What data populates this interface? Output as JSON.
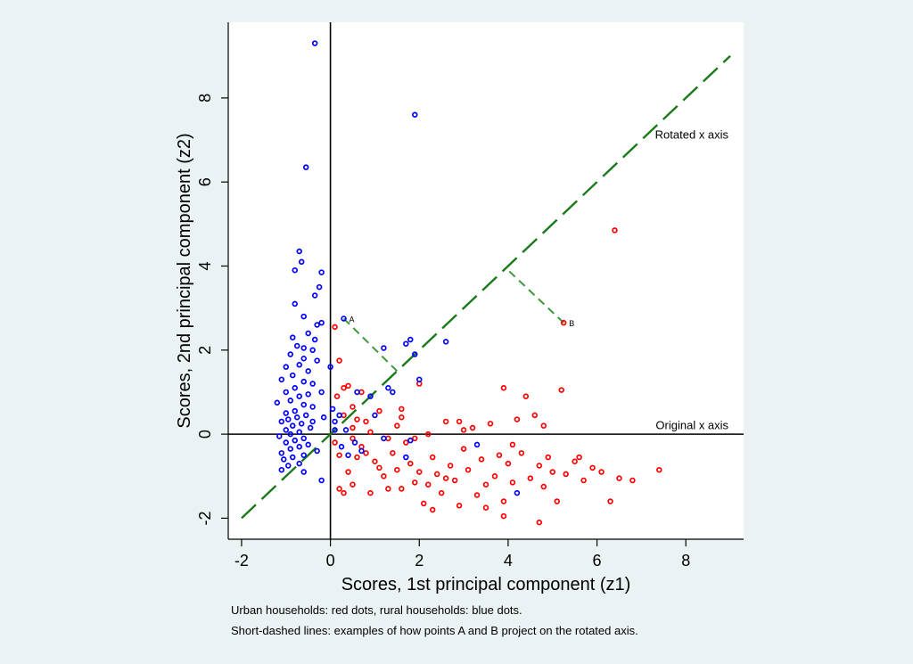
{
  "chart_data": {
    "type": "scatter",
    "xlabel": "Scores, 1st principal component (z1)",
    "ylabel": "Scores, 2nd principal component (z2)",
    "xlim": [
      -2.3,
      9.3
    ],
    "ylim": [
      -2.5,
      9.8
    ],
    "xticks": [
      -2,
      0,
      2,
      4,
      6,
      8
    ],
    "yticks": [
      -2,
      0,
      2,
      4,
      6,
      8
    ],
    "grid": false,
    "annotations": [
      {
        "text": "Rotated x axis",
        "x": 9.0,
        "y": 6.95
      },
      {
        "text": "Original x axis",
        "x": 9.0,
        "y": 0.03
      }
    ],
    "reference_lines": {
      "rotated_axis": {
        "from": [
          -2,
          -2
        ],
        "to": [
          9,
          9
        ]
      },
      "original_axis_y": 0,
      "original_axis_x": 0
    },
    "labeled_points": [
      {
        "label": "A",
        "x": 0.3,
        "y": 2.75,
        "proj_x": 1.5,
        "proj_y": 1.5
      },
      {
        "label": "B",
        "x": 5.25,
        "y": 2.65,
        "proj_x": 3.95,
        "proj_y": 3.95
      }
    ],
    "colors": {
      "urban": "#ff0000",
      "rural": "#0000ff",
      "rotated_axis": "#1a7a1a",
      "projection": "#3c9a3c"
    },
    "series": [
      {
        "color": "#ff0000",
        "points": [
          [
            0.1,
            2.55
          ],
          [
            0.2,
            1.75
          ],
          [
            0.3,
            1.1
          ],
          [
            0.4,
            1.15
          ],
          [
            0.5,
            0.65
          ],
          [
            0.6,
            0.35
          ],
          [
            0.3,
            0.45
          ],
          [
            0.5,
            -0.1
          ],
          [
            0.2,
            -0.5
          ],
          [
            0.4,
            -0.9
          ],
          [
            0.2,
            -1.3
          ],
          [
            0.3,
            -1.4
          ],
          [
            0.5,
            -1.2
          ],
          [
            0.6,
            -0.55
          ],
          [
            0.7,
            -0.3
          ],
          [
            0.8,
            0.3
          ],
          [
            0.9,
            0.05
          ],
          [
            1.0,
            -0.65
          ],
          [
            1.1,
            -0.8
          ],
          [
            1.2,
            -1.0
          ],
          [
            1.3,
            -1.3
          ],
          [
            1.4,
            -0.45
          ],
          [
            1.5,
            -0.85
          ],
          [
            1.6,
            0.6
          ],
          [
            1.7,
            -0.2
          ],
          [
            1.8,
            -0.7
          ],
          [
            1.9,
            -1.15
          ],
          [
            2.0,
            -0.9
          ],
          [
            2.1,
            -1.65
          ],
          [
            2.2,
            -1.2
          ],
          [
            2.3,
            -0.55
          ],
          [
            2.4,
            -0.95
          ],
          [
            2.5,
            -1.4
          ],
          [
            2.6,
            0.3
          ],
          [
            2.7,
            -0.75
          ],
          [
            2.8,
            -1.1
          ],
          [
            2.9,
            -1.7
          ],
          [
            3.0,
            -0.35
          ],
          [
            3.1,
            -0.85
          ],
          [
            3.2,
            0.15
          ],
          [
            3.3,
            -1.45
          ],
          [
            3.4,
            -0.6
          ],
          [
            3.5,
            -1.2
          ],
          [
            3.6,
            0.25
          ],
          [
            3.7,
            -1.0
          ],
          [
            3.8,
            -0.5
          ],
          [
            3.9,
            -1.6
          ],
          [
            4.0,
            -0.7
          ],
          [
            4.1,
            -1.15
          ],
          [
            4.2,
            0.35
          ],
          [
            4.3,
            -0.45
          ],
          [
            4.4,
            0.9
          ],
          [
            4.5,
            -1.05
          ],
          [
            4.6,
            0.45
          ],
          [
            4.7,
            -0.75
          ],
          [
            4.8,
            -1.25
          ],
          [
            4.9,
            -0.55
          ],
          [
            5.0,
            -0.9
          ],
          [
            5.1,
            -1.6
          ],
          [
            5.2,
            1.05
          ],
          [
            5.3,
            -0.95
          ],
          [
            5.5,
            -0.65
          ],
          [
            5.7,
            -1.1
          ],
          [
            5.9,
            -0.8
          ],
          [
            6.1,
            -0.9
          ],
          [
            6.3,
            -1.6
          ],
          [
            6.5,
            -1.05
          ],
          [
            6.8,
            -1.1
          ],
          [
            7.4,
            -0.85
          ],
          [
            6.4,
            4.85
          ],
          [
            5.25,
            2.65
          ],
          [
            3.9,
            1.1
          ],
          [
            2.0,
            1.2
          ],
          [
            1.6,
            0.4
          ],
          [
            1.1,
            0.55
          ],
          [
            0.15,
            0.9
          ],
          [
            0.1,
            -0.2
          ],
          [
            0.9,
            -1.4
          ],
          [
            1.9,
            -0.1
          ],
          [
            2.3,
            -1.8
          ],
          [
            3.5,
            -1.75
          ],
          [
            4.7,
            -2.1
          ],
          [
            3.9,
            -1.95
          ],
          [
            0.7,
            1.0
          ],
          [
            0.8,
            -0.45
          ],
          [
            1.6,
            -1.3
          ],
          [
            2.6,
            -1.05
          ],
          [
            4.1,
            -0.25
          ],
          [
            5.6,
            -0.55
          ],
          [
            0.5,
            0.15
          ],
          [
            1.3,
            -0.1
          ],
          [
            2.2,
            0.0
          ],
          [
            3.0,
            0.1
          ],
          [
            4.8,
            0.2
          ],
          [
            1.5,
            0.2
          ],
          [
            2.9,
            0.3
          ]
        ]
      },
      {
        "color": "#0000ff",
        "points": [
          [
            -0.35,
            9.3
          ],
          [
            -0.55,
            6.35
          ],
          [
            -0.7,
            4.35
          ],
          [
            -0.65,
            4.1
          ],
          [
            -0.8,
            3.9
          ],
          [
            -0.2,
            3.85
          ],
          [
            -0.25,
            3.5
          ],
          [
            -0.35,
            3.3
          ],
          [
            -0.8,
            3.1
          ],
          [
            -0.6,
            2.8
          ],
          [
            -0.3,
            2.6
          ],
          [
            -0.5,
            2.4
          ],
          [
            -0.85,
            2.3
          ],
          [
            -0.75,
            2.1
          ],
          [
            -0.4,
            2.0
          ],
          [
            -0.9,
            1.9
          ],
          [
            -0.6,
            1.8
          ],
          [
            -0.3,
            1.75
          ],
          [
            -0.7,
            1.65
          ],
          [
            -1.0,
            1.6
          ],
          [
            -0.5,
            1.5
          ],
          [
            -0.85,
            1.4
          ],
          [
            -1.1,
            1.3
          ],
          [
            -0.6,
            1.25
          ],
          [
            -0.4,
            1.2
          ],
          [
            -0.8,
            1.1
          ],
          [
            -1.0,
            1.0
          ],
          [
            -0.5,
            0.95
          ],
          [
            -0.7,
            0.9
          ],
          [
            -0.9,
            0.8
          ],
          [
            -1.2,
            0.75
          ],
          [
            -0.6,
            0.7
          ],
          [
            -0.4,
            0.65
          ],
          [
            -0.8,
            0.55
          ],
          [
            -1.0,
            0.5
          ],
          [
            -0.55,
            0.45
          ],
          [
            -0.75,
            0.4
          ],
          [
            -0.95,
            0.35
          ],
          [
            -1.1,
            0.3
          ],
          [
            -0.65,
            0.25
          ],
          [
            -0.85,
            0.2
          ],
          [
            -0.45,
            0.15
          ],
          [
            -1.0,
            0.1
          ],
          [
            -0.7,
            0.05
          ],
          [
            -0.9,
            0.0
          ],
          [
            -1.15,
            -0.05
          ],
          [
            -0.6,
            -0.1
          ],
          [
            -0.8,
            -0.15
          ],
          [
            -1.0,
            -0.2
          ],
          [
            -0.5,
            -0.25
          ],
          [
            -0.7,
            -0.3
          ],
          [
            -0.9,
            -0.35
          ],
          [
            -1.1,
            -0.45
          ],
          [
            -0.6,
            -0.5
          ],
          [
            -0.85,
            -0.55
          ],
          [
            -1.05,
            -0.6
          ],
          [
            -0.7,
            -0.7
          ],
          [
            -0.95,
            -0.75
          ],
          [
            -1.1,
            -0.85
          ],
          [
            -0.6,
            -0.9
          ],
          [
            -0.2,
            -1.1
          ],
          [
            0.1,
            0.3
          ],
          [
            0.2,
            0.45
          ],
          [
            0.05,
            0.6
          ],
          [
            0.3,
            2.75
          ],
          [
            1.2,
            2.05
          ],
          [
            1.4,
            1.0
          ],
          [
            1.7,
            2.15
          ],
          [
            1.8,
            2.25
          ],
          [
            1.9,
            1.9
          ],
          [
            2.0,
            1.3
          ],
          [
            1.3,
            1.1
          ],
          [
            1.8,
            -0.15
          ],
          [
            2.6,
            2.2
          ],
          [
            1.9,
            7.6
          ],
          [
            1.0,
            0.45
          ],
          [
            0.7,
            -0.4
          ],
          [
            0.4,
            -0.5
          ],
          [
            0.6,
            1.0
          ],
          [
            0.9,
            0.9
          ],
          [
            1.2,
            -0.1
          ],
          [
            3.3,
            -0.25
          ],
          [
            4.2,
            -1.4
          ],
          [
            1.7,
            -0.55
          ],
          [
            0.55,
            -0.2
          ],
          [
            0.35,
            0.1
          ],
          [
            -0.3,
            -0.4
          ],
          [
            -0.4,
            0.3
          ],
          [
            -0.2,
            1.0
          ],
          [
            -0.15,
            0.4
          ],
          [
            0.0,
            1.6
          ],
          [
            -0.6,
            2.05
          ],
          [
            -0.35,
            2.25
          ],
          [
            -0.2,
            2.65
          ],
          [
            0.1,
            0.1
          ],
          [
            0.25,
            -0.3
          ]
        ]
      }
    ]
  },
  "notes": {
    "line1": "Urban households: red dots, rural households: blue dots.",
    "line2": "Short-dashed lines: examples of how points A and B project on the rotated axis."
  }
}
